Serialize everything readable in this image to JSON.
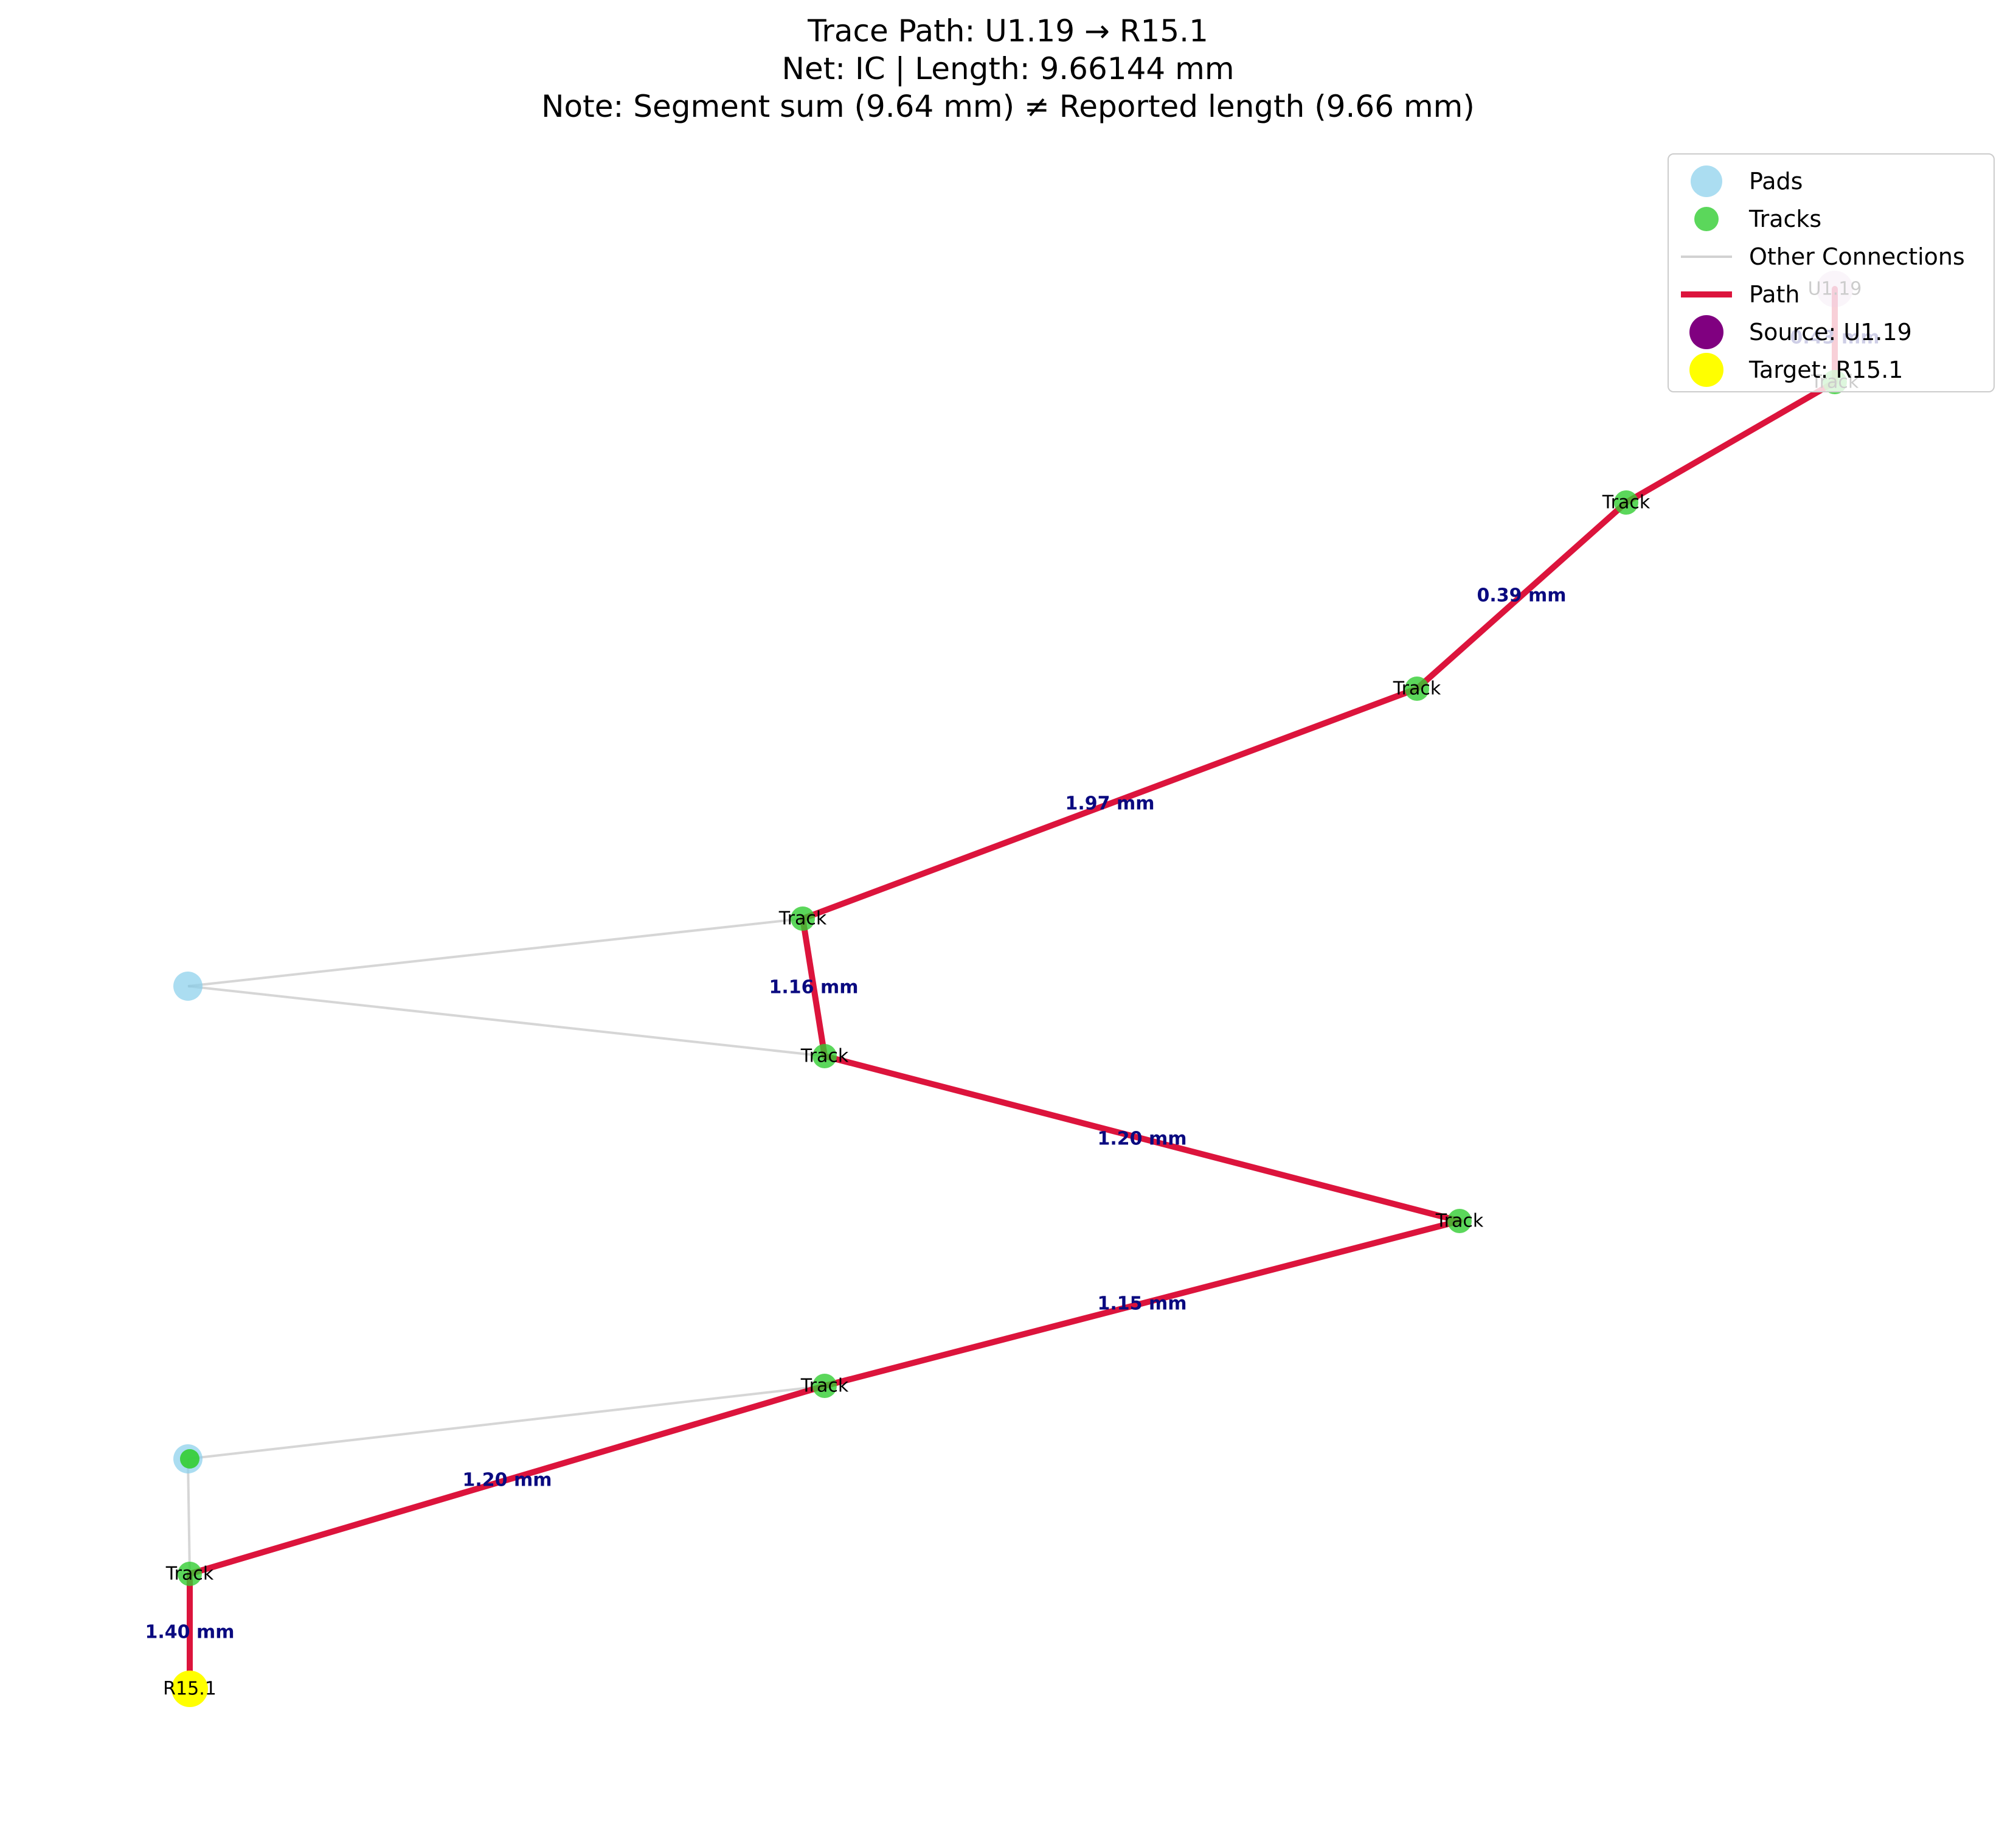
{
  "title": {
    "line1": "Trace Path: U1.19 → R15.1",
    "line2": "Net: IC | Length: 9.66144 mm",
    "line3": "Note: Segment sum (9.64 mm) ≠ Reported length (9.66 mm)"
  },
  "legend": {
    "items": [
      {
        "key": "pads",
        "label": "Pads"
      },
      {
        "key": "tracks",
        "label": "Tracks"
      },
      {
        "key": "other",
        "label": "Other Connections"
      },
      {
        "key": "path",
        "label": "Path"
      },
      {
        "key": "source",
        "label": "Source: U1.19"
      },
      {
        "key": "target",
        "label": "Target: R15.1"
      }
    ]
  },
  "colors": {
    "pad": "#87ceeb",
    "track": "#32cd32",
    "path": "#dc143c",
    "other": "#b4b4b4",
    "source": "#800080",
    "target": "#ffff00",
    "segment_label": "#0a0a80"
  },
  "nodes": [
    {
      "id": "U1.19",
      "type": "source",
      "label": "U1.19"
    },
    {
      "id": "t1",
      "type": "track",
      "label": "Track"
    },
    {
      "id": "t2",
      "type": "track",
      "label": "Track"
    },
    {
      "id": "t3",
      "type": "track",
      "label": "Track"
    },
    {
      "id": "t4",
      "type": "track",
      "label": "Track"
    },
    {
      "id": "t5",
      "type": "track",
      "label": "Track"
    },
    {
      "id": "t6",
      "type": "track",
      "label": "Track"
    },
    {
      "id": "t7",
      "type": "track",
      "label": "Track"
    },
    {
      "id": "t8",
      "type": "track",
      "label": "Track"
    },
    {
      "id": "R15.1",
      "type": "target",
      "label": "R15.1"
    },
    {
      "id": "p1",
      "type": "pad",
      "label": ""
    },
    {
      "id": "p2",
      "type": "pad",
      "label": ""
    }
  ],
  "path_segments": [
    {
      "from": "U1.19",
      "to": "t1",
      "label": "0.43 mm"
    },
    {
      "from": "t1",
      "to": "t2",
      "label": ""
    },
    {
      "from": "t2",
      "to": "t3",
      "label": "0.39 mm"
    },
    {
      "from": "t3",
      "to": "t4",
      "label": "1.97 mm"
    },
    {
      "from": "t4",
      "to": "t5",
      "label": "1.16 mm"
    },
    {
      "from": "t5",
      "to": "t6",
      "label": "1.20 mm"
    },
    {
      "from": "t6",
      "to": "t7",
      "label": "1.15 mm"
    },
    {
      "from": "t7",
      "to": "t8",
      "label": "1.20 mm"
    },
    {
      "from": "t8",
      "to": "R15.1",
      "label": "1.40 mm"
    }
  ],
  "other_connections": [
    {
      "from": "p1",
      "to": "t4"
    },
    {
      "from": "p1",
      "to": "t5"
    },
    {
      "from": "p2",
      "to": "t7"
    },
    {
      "from": "p2",
      "to": "t8"
    }
  ]
}
